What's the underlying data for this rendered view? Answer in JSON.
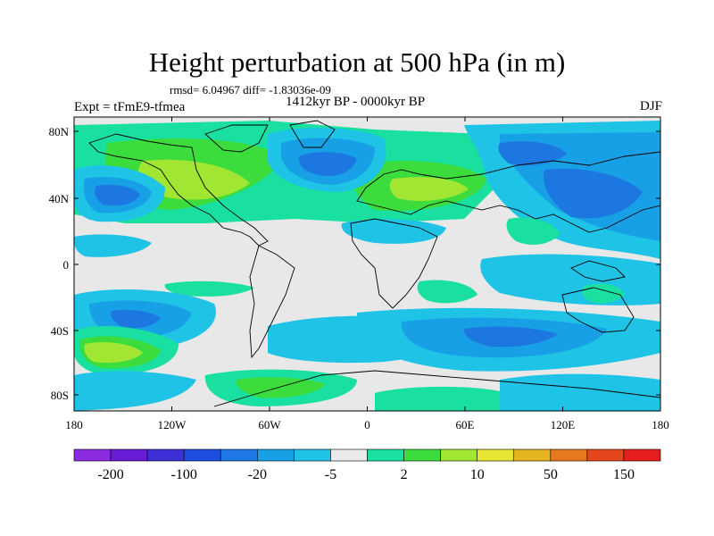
{
  "title": "Height perturbation at 500 hPa (in m)",
  "stats": "rmsd= 6.04967 diff= -1.83036e-09",
  "period": "1412kyr BP - 0000kyr BP",
  "expt": "Expt = tFmE9-tfmea",
  "season": "DJF",
  "axes": {
    "y_ticks": [
      "80N",
      "40N",
      "0",
      "40S",
      "80S"
    ],
    "x_ticks": [
      "180",
      "120W",
      "60W",
      "0",
      "60E",
      "120E",
      "180"
    ]
  },
  "colorbar": {
    "labels": [
      "-200",
      "-100",
      "-20",
      "-5",
      "2",
      "10",
      "50",
      "150"
    ],
    "colors": [
      "#8A2BE2",
      "#6A1BD8",
      "#3C2FD8",
      "#1C4FE0",
      "#1E78E6",
      "#18A0E6",
      "#1EC3E6",
      "#EAEAEA",
      "#19E0A0",
      "#3CDC3C",
      "#A0E632",
      "#E6E632",
      "#E6B41E",
      "#E6781E",
      "#E6461E",
      "#E61E1E"
    ]
  },
  "map_colors": {
    "neutral": "#E8E8E8",
    "light_pos": "#19E0A0",
    "pos": "#3CDC3C",
    "strong_pos": "#A0E632",
    "light_neg": "#1EC3E6",
    "neg": "#18A0E6",
    "strong_neg": "#1C78E0",
    "deep_neg": "#1C4FE0"
  }
}
